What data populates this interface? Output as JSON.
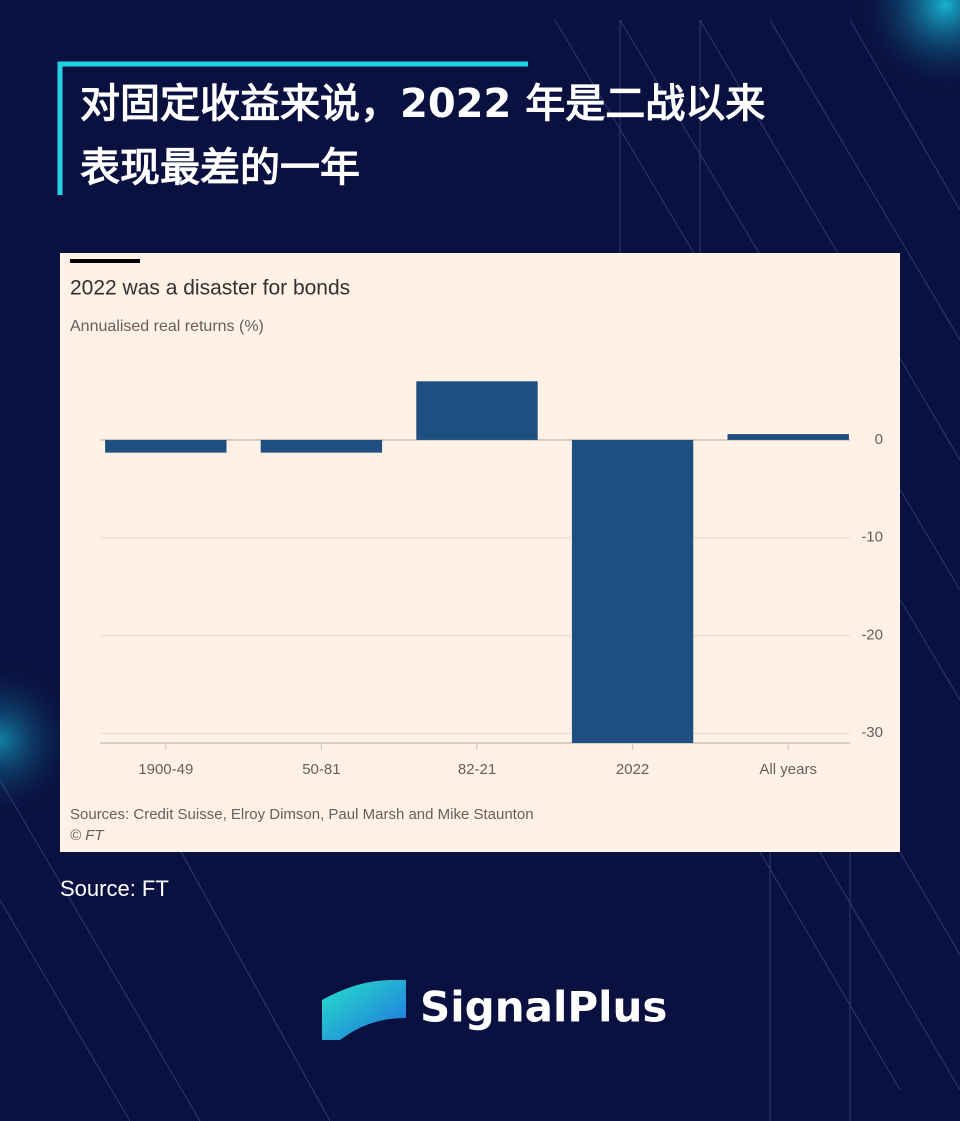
{
  "header": {
    "title": [
      "对固定收益来说，2022 年是二战以来",
      "表现最差的一年"
    ]
  },
  "chart_data": {
    "type": "bar",
    "title": "2022 was a disaster for bonds",
    "subtitle": "Annualised real returns (%)",
    "categories": [
      "1900-49",
      "50-81",
      "82-21",
      "2022",
      "All years"
    ],
    "values": [
      -1.3,
      -1.3,
      6.0,
      -31,
      0.6
    ],
    "color": "#1f4e80",
    "ylim": [
      -31,
      9.2
    ],
    "yticks": [
      0,
      -10,
      -20,
      -30
    ],
    "grid": true,
    "footnote": "Sources: Credit Suisse, Elroy Dimson, Paul Marsh and Mike Staunton",
    "credit": "© FT"
  },
  "source": "Source: FT",
  "brand": "SignalPlus"
}
